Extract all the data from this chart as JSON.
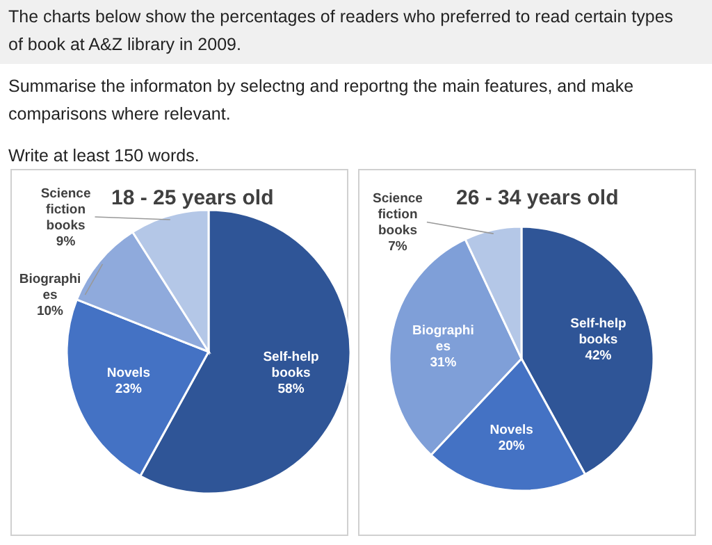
{
  "chart_data": [
    {
      "type": "other",
      "annotations": [
        "The charts below show the percentages of readers who preferred to read certain types of book at A&Z library in 2009.",
        "Summarise the informaton by selectng and reportng the main features, and make comparisons where relevant.",
        "Write at least 150 words."
      ]
    },
    {
      "type": "pie",
      "title": "18 - 25 years old",
      "categories": [
        "Self-help books",
        "Novels",
        "Biographies",
        "Science fiction books"
      ],
      "values": [
        58,
        23,
        10,
        9
      ],
      "colors": [
        "#2f5597",
        "#4472c4",
        "#8faadc",
        "#b4c7e7"
      ],
      "value_labels": [
        "58%",
        "23%",
        "10%",
        "9%"
      ]
    },
    {
      "type": "pie",
      "title": "26 - 34 years old",
      "categories": [
        "Self-help books",
        "Novels",
        "Biographies",
        "Science fiction books"
      ],
      "values": [
        42,
        20,
        31,
        7
      ],
      "colors": [
        "#2f5597",
        "#4472c4",
        "#7f9fd8",
        "#b4c7e7"
      ],
      "value_labels": [
        "42%",
        "20%",
        "31%",
        "7%"
      ]
    }
  ]
}
